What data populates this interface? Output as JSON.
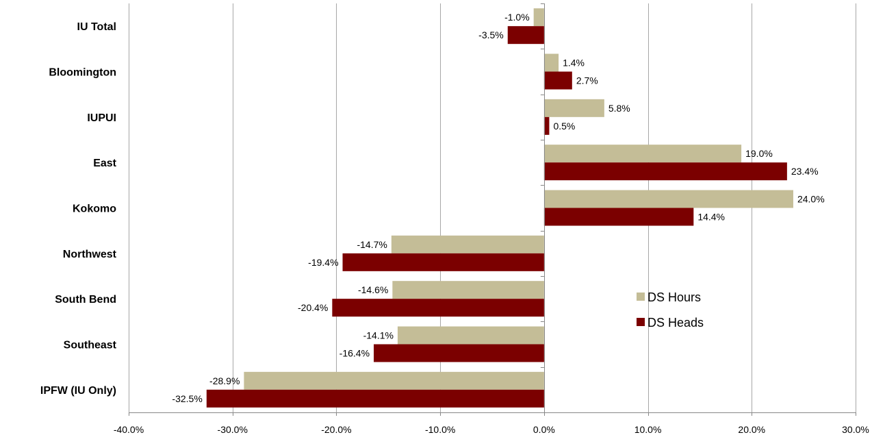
{
  "chart_data": {
    "type": "bar",
    "orientation": "horizontal",
    "categories": [
      "IU Total",
      "Bloomington",
      "IUPUI",
      "East",
      "Kokomo",
      "Northwest",
      "South Bend",
      "Southeast",
      "IPFW (IU Only)"
    ],
    "series": [
      {
        "name": "DS Hours",
        "color": "#c4bd97",
        "values": [
          -1.0,
          1.4,
          5.8,
          19.0,
          24.0,
          -14.7,
          -14.6,
          -14.1,
          -28.9
        ],
        "labels": [
          "-1.0%",
          "1.4%",
          "5.8%",
          "19.0%",
          "24.0%",
          "-14.7%",
          "-14.6%",
          "-14.1%",
          "-28.9%"
        ]
      },
      {
        "name": "DS Heads",
        "color": "#7b0000",
        "values": [
          -3.5,
          2.7,
          0.5,
          23.4,
          14.4,
          -19.4,
          -20.4,
          -16.4,
          -32.5
        ],
        "labels": [
          "-3.5%",
          "2.7%",
          "0.5%",
          "23.4%",
          "14.4%",
          "-19.4%",
          "-20.4%",
          "-16.4%",
          "-32.5%"
        ]
      }
    ],
    "xlim": [
      -40,
      30
    ],
    "x_ticks": [
      -40,
      -30,
      -20,
      -10,
      0,
      10,
      20,
      30
    ],
    "x_tick_labels": [
      "-40.0%",
      "-30.0%",
      "-20.0%",
      "-10.0%",
      "0.0%",
      "10.0%",
      "20.0%",
      "30.0%"
    ],
    "grid": "vertical",
    "legend_placement": "lower-right",
    "title": "",
    "xlabel": "",
    "ylabel": ""
  }
}
